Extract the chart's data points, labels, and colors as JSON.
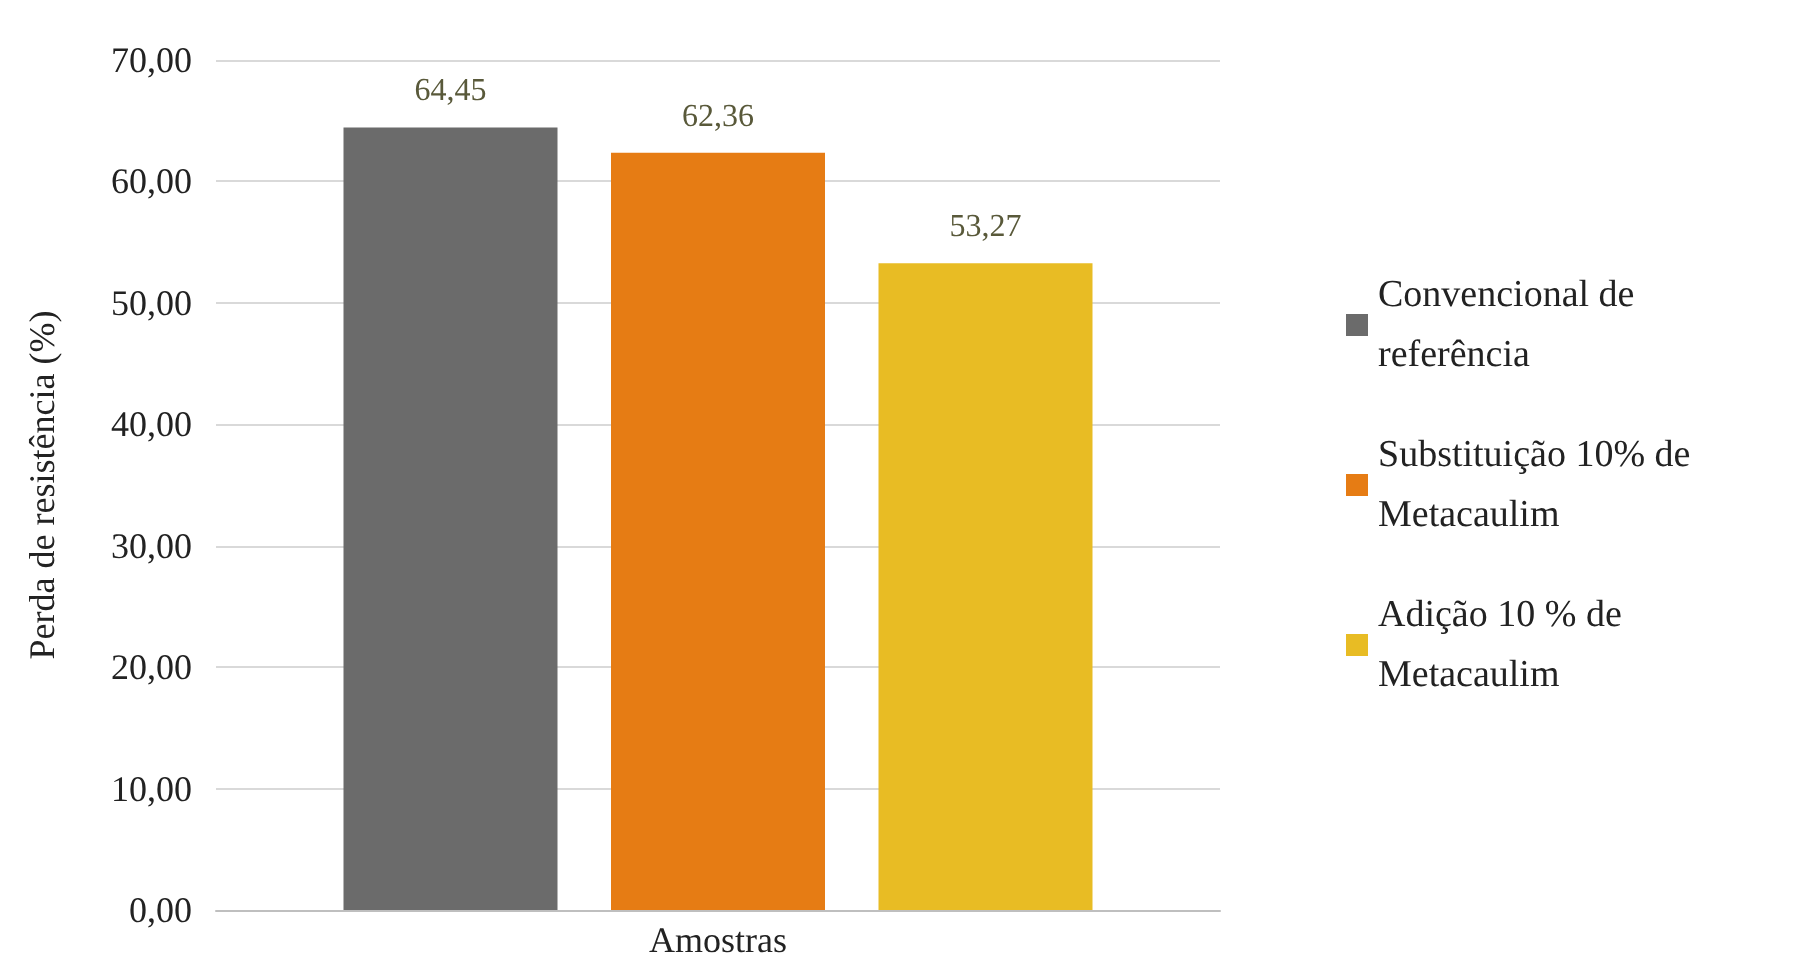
{
  "chart_data": {
    "type": "bar",
    "ylabel": "Perda de resistência (%)",
    "categories": [
      "Amostras"
    ],
    "series": [
      {
        "name": "Convencional de referência",
        "color": "#6b6b6b",
        "values": [
          64.45
        ],
        "value_labels": [
          "64,45"
        ]
      },
      {
        "name": "Substituição 10% de Metacaulim",
        "color": "#e67c14",
        "values": [
          62.36
        ],
        "value_labels": [
          "62,36"
        ]
      },
      {
        "name": "Adição 10 % de Metacaulim",
        "color": "#e8bc24",
        "values": [
          53.27
        ],
        "value_labels": [
          "53,27"
        ]
      }
    ],
    "ylim": [
      0,
      70
    ],
    "yticks": [
      {
        "value": 0,
        "label": "0,00"
      },
      {
        "value": 10,
        "label": "10,00"
      },
      {
        "value": 20,
        "label": "20,00"
      },
      {
        "value": 30,
        "label": "30,00"
      },
      {
        "value": 40,
        "label": "40,00"
      },
      {
        "value": 50,
        "label": "50,00"
      },
      {
        "value": 60,
        "label": "60,00"
      },
      {
        "value": 70,
        "label": "70,00"
      }
    ],
    "grid": "y",
    "legend": "right"
  }
}
